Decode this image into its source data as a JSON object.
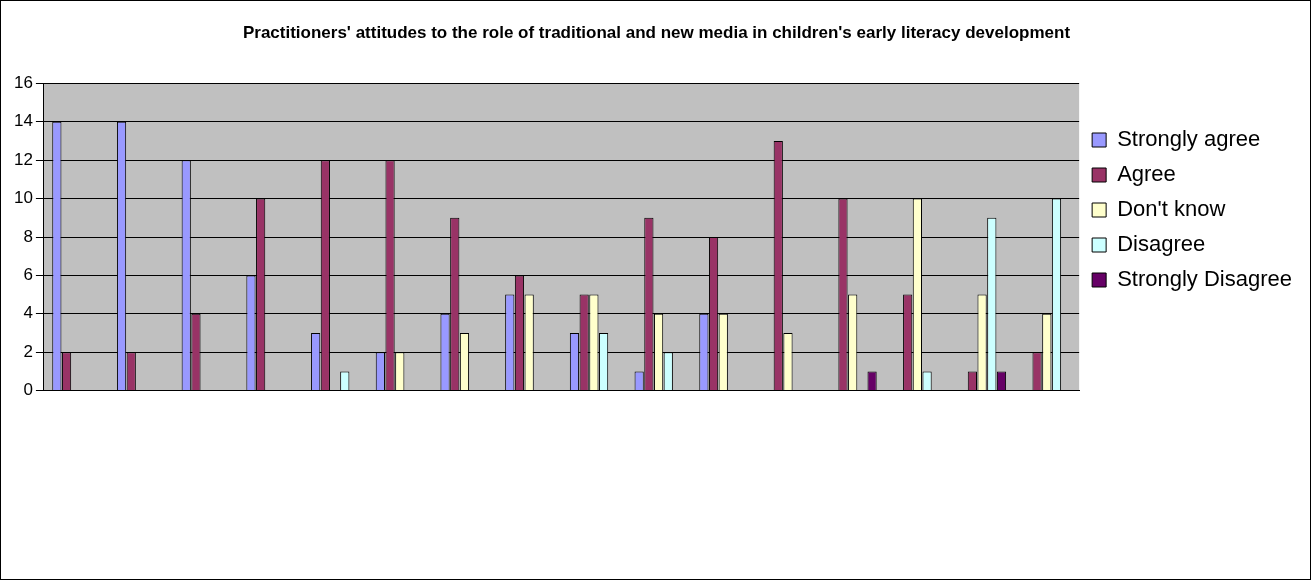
{
  "chart_data": {
    "type": "bar",
    "title": "Practitioners' attitudes to the role of traditional and new media in children's early literacy development",
    "categories": [
      null,
      null,
      null,
      null,
      null,
      null,
      null,
      null,
      null,
      null,
      null,
      null,
      null,
      null,
      null,
      null
    ],
    "series": [
      {
        "name": "Strongly agree",
        "color": "#9999ff",
        "values": [
          14,
          14,
          12,
          6,
          3,
          2,
          4,
          5,
          3,
          1,
          4,
          0,
          0,
          0,
          0,
          0
        ]
      },
      {
        "name": "Agree",
        "color": "#993366",
        "values": [
          2,
          2,
          4,
          10,
          12,
          12,
          9,
          6,
          5,
          9,
          8,
          13,
          10,
          5,
          1,
          2
        ]
      },
      {
        "name": "Don't know",
        "color": "#ffffcc",
        "values": [
          0,
          0,
          0,
          0,
          0,
          2,
          3,
          5,
          5,
          4,
          4,
          3,
          5,
          10,
          5,
          4
        ]
      },
      {
        "name": "Disagree",
        "color": "#ccffff",
        "values": [
          0,
          0,
          0,
          0,
          1,
          0,
          0,
          0,
          3,
          2,
          0,
          0,
          0,
          1,
          9,
          10
        ]
      },
      {
        "name": "Strongly Disagree",
        "color": "#660066",
        "values": [
          0,
          0,
          0,
          0,
          0,
          0,
          0,
          0,
          0,
          0,
          0,
          0,
          1,
          0,
          1,
          0
        ]
      }
    ],
    "ylim": [
      0,
      16
    ],
    "yticks": [
      0,
      2,
      4,
      6,
      8,
      10,
      12,
      14,
      16
    ],
    "grid": "y",
    "legend": "right"
  }
}
